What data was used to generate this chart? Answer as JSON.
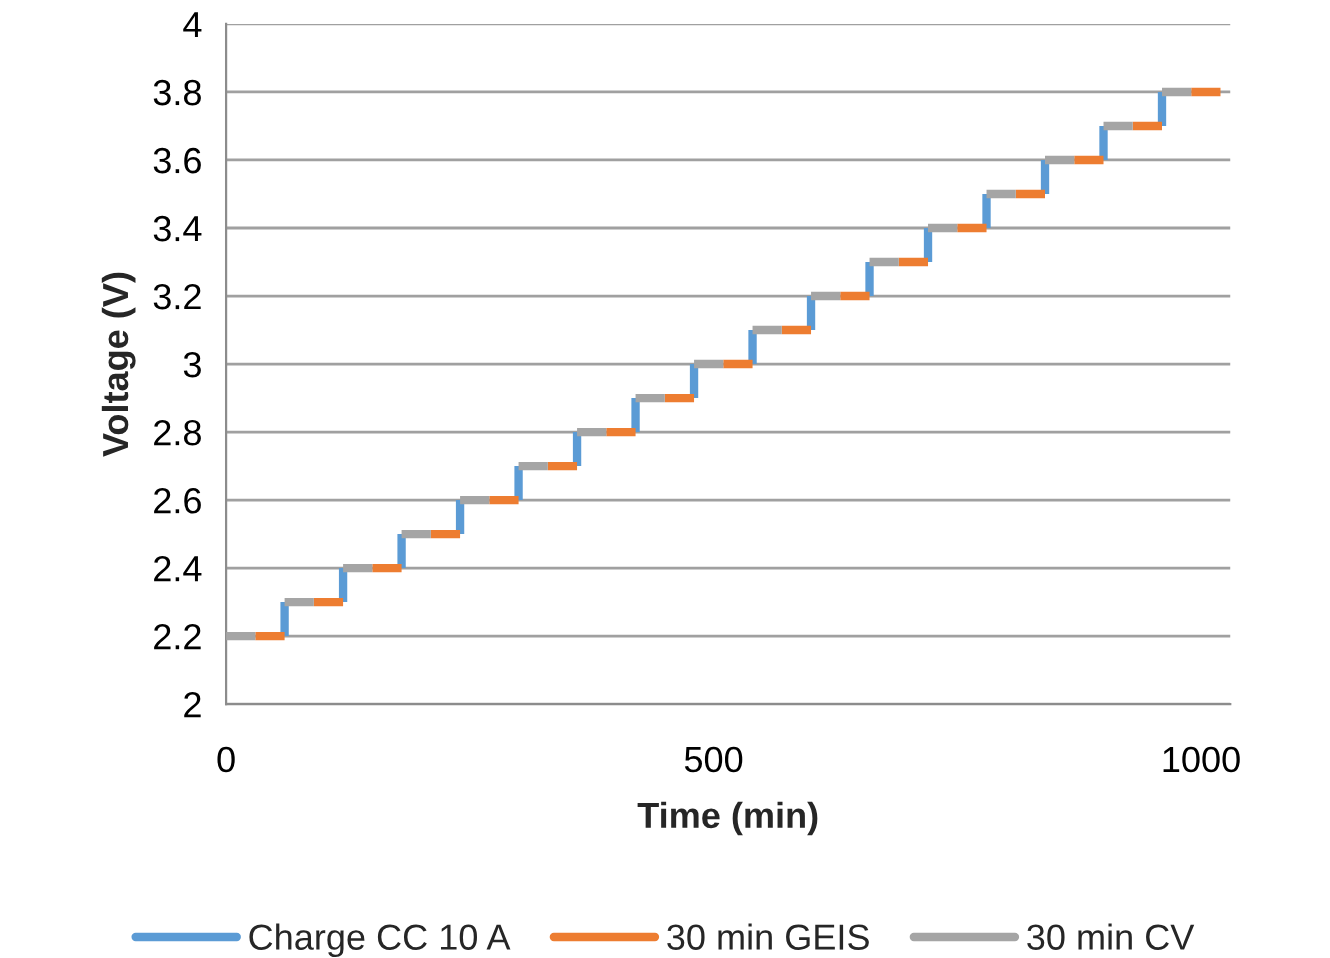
{
  "chart_data": {
    "type": "line",
    "xlabel": "Time (min)",
    "ylabel": "Voltage (V)",
    "xlim": [
      0,
      1030
    ],
    "xticks": [
      0,
      500,
      1000
    ],
    "ylim": [
      2,
      4
    ],
    "yticks": [
      2,
      2.2,
      2.4,
      2.6,
      2.8,
      3,
      3.2,
      3.4,
      3.6,
      3.8,
      4
    ],
    "grid": "y",
    "legend": "bottom",
    "marker": "none",
    "line_style": "solid",
    "series": [
      {
        "name": "Charge CC 10 A",
        "color": "#5b9bd5",
        "x": [
          60,
          60,
          null,
          120,
          120,
          null,
          180,
          180,
          null,
          240,
          240,
          null,
          300,
          300,
          null,
          360,
          360,
          null,
          420,
          420,
          null,
          480,
          480,
          null,
          540,
          540,
          null,
          600,
          600,
          null,
          660,
          660,
          null,
          720,
          720,
          null,
          780,
          780,
          null,
          840,
          840,
          null,
          900,
          900,
          null,
          960,
          960
        ],
        "values": [
          2.2,
          2.3,
          null,
          2.3,
          2.4,
          null,
          2.4,
          2.5,
          null,
          2.5,
          2.6,
          null,
          2.6,
          2.7,
          null,
          2.7,
          2.8,
          null,
          2.8,
          2.9,
          null,
          2.9,
          3.0,
          null,
          3.0,
          3.1,
          null,
          3.1,
          3.2,
          null,
          3.2,
          3.3,
          null,
          3.3,
          3.4,
          null,
          3.4,
          3.5,
          null,
          3.5,
          3.6,
          null,
          3.6,
          3.7,
          null,
          3.7,
          3.8
        ]
      },
      {
        "name": "30 min GEIS",
        "color": "#ed7d31",
        "x": [
          30,
          60,
          null,
          90,
          120,
          null,
          150,
          180,
          null,
          210,
          240,
          null,
          270,
          300,
          null,
          330,
          360,
          null,
          390,
          420,
          null,
          450,
          480,
          null,
          510,
          540,
          null,
          570,
          600,
          null,
          630,
          660,
          null,
          690,
          720,
          null,
          750,
          780,
          null,
          810,
          840,
          null,
          870,
          900,
          null,
          930,
          960,
          null,
          990,
          1020
        ],
        "values": [
          2.2,
          2.2,
          null,
          2.3,
          2.3,
          null,
          2.4,
          2.4,
          null,
          2.5,
          2.5,
          null,
          2.6,
          2.6,
          null,
          2.7,
          2.7,
          null,
          2.8,
          2.8,
          null,
          2.9,
          2.9,
          null,
          3.0,
          3.0,
          null,
          3.1,
          3.1,
          null,
          3.2,
          3.2,
          null,
          3.3,
          3.3,
          null,
          3.4,
          3.4,
          null,
          3.5,
          3.5,
          null,
          3.6,
          3.6,
          null,
          3.7,
          3.7,
          null,
          3.8,
          3.8
        ]
      },
      {
        "name": "30 min CV",
        "color": "#a5a5a5",
        "x": [
          0,
          30,
          null,
          60,
          90,
          null,
          120,
          150,
          null,
          180,
          210,
          null,
          240,
          270,
          null,
          300,
          330,
          null,
          360,
          390,
          null,
          420,
          450,
          null,
          480,
          510,
          null,
          540,
          570,
          null,
          600,
          630,
          null,
          660,
          690,
          null,
          720,
          750,
          null,
          780,
          810,
          null,
          840,
          870,
          null,
          900,
          930,
          null,
          960,
          990
        ],
        "values": [
          2.2,
          2.2,
          null,
          2.3,
          2.3,
          null,
          2.4,
          2.4,
          null,
          2.5,
          2.5,
          null,
          2.6,
          2.6,
          null,
          2.7,
          2.7,
          null,
          2.8,
          2.8,
          null,
          2.9,
          2.9,
          null,
          3.0,
          3.0,
          null,
          3.1,
          3.1,
          null,
          3.2,
          3.2,
          null,
          3.3,
          3.3,
          null,
          3.4,
          3.4,
          null,
          3.5,
          3.5,
          null,
          3.6,
          3.6,
          null,
          3.7,
          3.7,
          null,
          3.8,
          3.8
        ]
      }
    ]
  }
}
